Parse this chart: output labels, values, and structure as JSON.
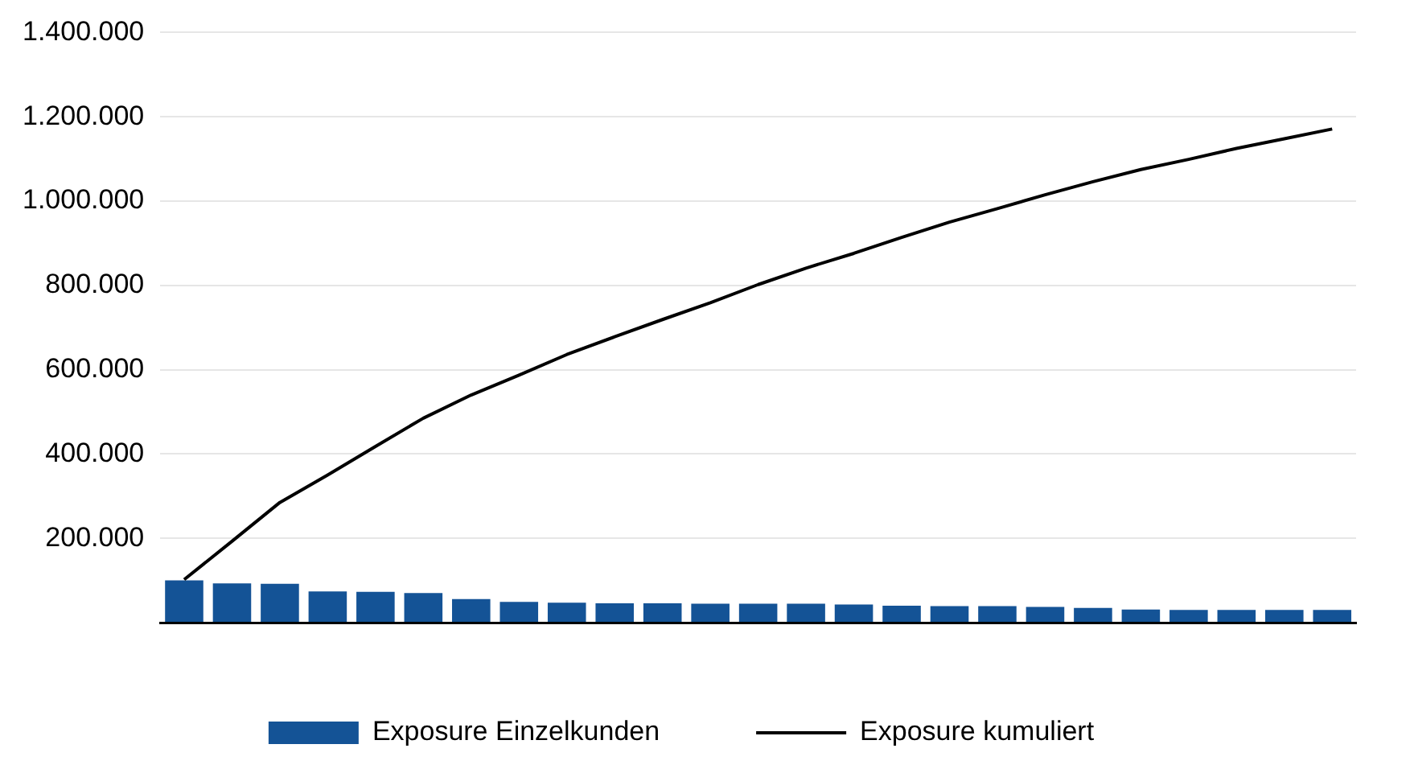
{
  "chart_data": {
    "type": "bar",
    "categories": [
      null,
      null,
      null,
      null,
      null,
      null,
      null,
      null,
      null,
      null,
      null,
      null,
      null,
      null,
      null,
      null,
      null,
      null,
      null,
      null,
      null,
      null,
      null,
      null,
      null
    ],
    "series": [
      {
        "name": "Exposure Einzelkunden",
        "color": "#145396",
        "values": [
          100000,
          93000,
          92000,
          74000,
          73000,
          70000,
          56000,
          49000,
          47000,
          46000,
          46000,
          45000,
          45000,
          45000,
          43000,
          40000,
          39000,
          39000,
          37000,
          35000,
          31000,
          30000,
          30000,
          30000,
          30000
        ]
      },
      {
        "name": "Exposure kumuliert",
        "type": "line",
        "color": "#000000",
        "values": [
          102000,
          193000,
          285000,
          350000,
          418000,
          485000,
          540000,
          587000,
          636000,
          678000,
          719000,
          759000,
          802000,
          841000,
          876000,
          914000,
          950000,
          982000,
          1015000,
          1046000,
          1075000,
          1099000,
          1125000,
          1148000,
          1171000
        ]
      }
    ],
    "ylim": [
      0,
      1400000
    ],
    "yticks": [
      {
        "value": 0,
        "label": null
      },
      {
        "value": 200000,
        "label": "200.000"
      },
      {
        "value": 400000,
        "label": "400.000"
      },
      {
        "value": 600000,
        "label": "600.000"
      },
      {
        "value": 800000,
        "label": "800.000"
      },
      {
        "value": 1000000,
        "label": "1.000.000"
      },
      {
        "value": 1200000,
        "label": "1.200.000"
      },
      {
        "value": 1400000,
        "label": "1.400.000"
      }
    ],
    "grid": "y",
    "legend": "bottom",
    "marker": "none",
    "line_style": "solid"
  }
}
